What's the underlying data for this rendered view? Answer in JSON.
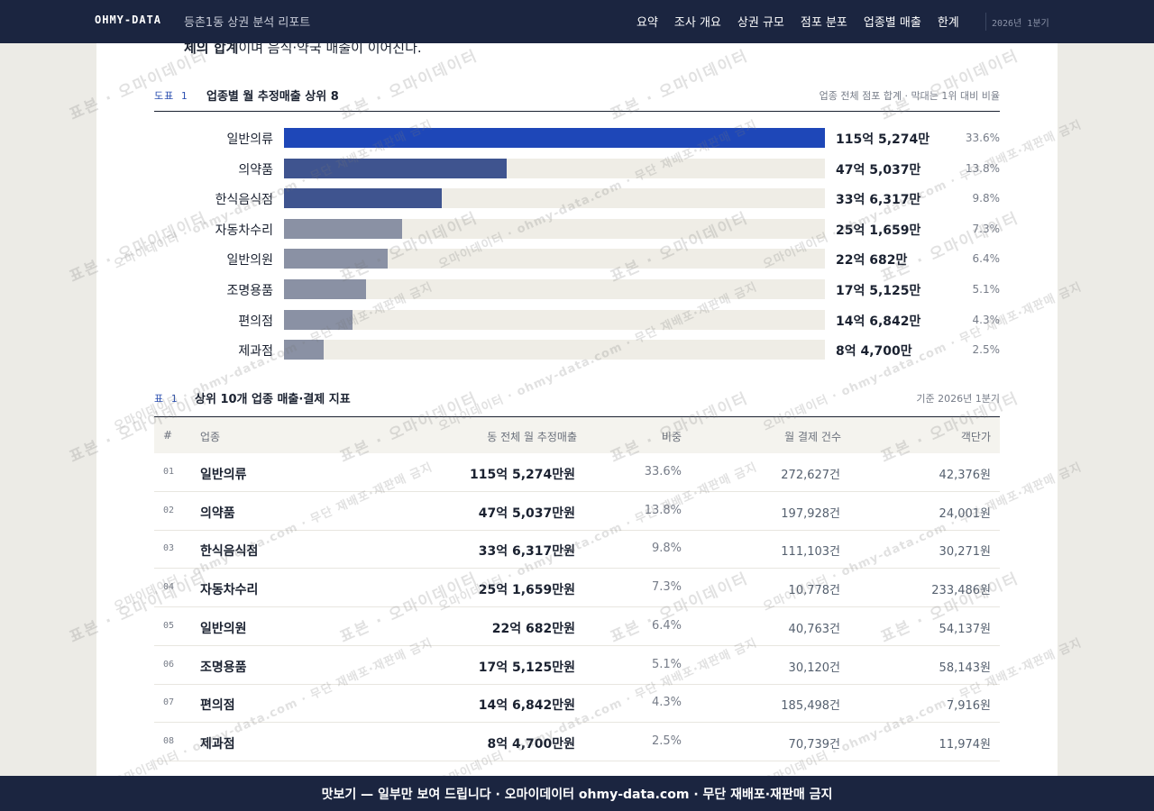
{
  "header": {
    "brand": "OHMY-DATA",
    "report_title": "등촌1동 상권 분석 리포트",
    "nav": [
      "요약",
      "조사 개요",
      "상권 규모",
      "점포 분포",
      "업종별 매출",
      "한계"
    ],
    "period": "2026년 1분기"
  },
  "intro_fragment": {
    "bold": "체의 합계",
    "rest": "이며 음식·약국 매출이 이어진다."
  },
  "figure1": {
    "tag": "도표 1",
    "title": "업종별 월 추정매출 상위 8",
    "note": "업종 전체 점포 합계 · 막대는 1위 대비 비율",
    "colors": {
      "top": "#1e47b8",
      "mid": "#3f548f",
      "rest": "#8a91a4",
      "track": "#efede6"
    }
  },
  "chart_data": {
    "type": "bar",
    "orientation": "horizontal",
    "title": "업종별 월 추정매출 상위 8",
    "categories": [
      "일반의류",
      "의약품",
      "한식음식점",
      "자동차수리",
      "일반의원",
      "조명용품",
      "편의점",
      "제과점"
    ],
    "value_labels": [
      "115억 5,274만",
      "47억 5,037만",
      "33억 6,317만",
      "25억 1,659만",
      "22억 682만",
      "17억 5,125만",
      "14억 6,842만",
      "8억 4,700만"
    ],
    "values": [
      1155274,
      475037,
      336317,
      251659,
      220682,
      175125,
      146842,
      84700
    ],
    "unit": "만원",
    "shares": [
      "33.6%",
      "13.8%",
      "9.8%",
      "7.3%",
      "6.4%",
      "5.1%",
      "4.3%",
      "2.5%"
    ],
    "series_colors": [
      "#1e47b8",
      "#3f548f",
      "#3f548f",
      "#8a91a4",
      "#8a91a4",
      "#8a91a4",
      "#8a91a4",
      "#8a91a4"
    ]
  },
  "table1": {
    "tag": "표 1",
    "title": "상위 10개 업종 매출·결제 지표",
    "note": "기준 2026년 1분기",
    "columns": [
      "#",
      "업종",
      "동 전체 월 추정매출",
      "비중",
      "월 결제 건수",
      "객단가"
    ],
    "rows": [
      {
        "rank": "01",
        "name": "일반의류",
        "sales": "115억 5,274만원",
        "share": "33.6%",
        "count": "272,627건",
        "avg": "42,376원"
      },
      {
        "rank": "02",
        "name": "의약품",
        "sales": "47억 5,037만원",
        "share": "13.8%",
        "count": "197,928건",
        "avg": "24,001원"
      },
      {
        "rank": "03",
        "name": "한식음식점",
        "sales": "33억 6,317만원",
        "share": "9.8%",
        "count": "111,103건",
        "avg": "30,271원"
      },
      {
        "rank": "04",
        "name": "자동차수리",
        "sales": "25억 1,659만원",
        "share": "7.3%",
        "count": "10,778건",
        "avg": "233,486원"
      },
      {
        "rank": "05",
        "name": "일반의원",
        "sales": "22억 682만원",
        "share": "6.4%",
        "count": "40,763건",
        "avg": "54,137원"
      },
      {
        "rank": "06",
        "name": "조명용품",
        "sales": "17억 5,125만원",
        "share": "5.1%",
        "count": "30,120건",
        "avg": "58,143원"
      },
      {
        "rank": "07",
        "name": "편의점",
        "sales": "14억 6,842만원",
        "share": "4.3%",
        "count": "185,498건",
        "avg": "7,916원"
      },
      {
        "rank": "08",
        "name": "제과점",
        "sales": "8억 4,700만원",
        "share": "2.5%",
        "count": "70,739건",
        "avg": "11,974원"
      }
    ]
  },
  "watermark": {
    "a": "표본 · 오마이데이터",
    "b": "오마이데이터 · ohmy-data.com · 무단 재배포·재판매 금지"
  },
  "banner": "맛보기 — 일부만 보여 드립니다 · 오마이데이터 ohmy-data.com · 무단 재배포·재판매 금지"
}
